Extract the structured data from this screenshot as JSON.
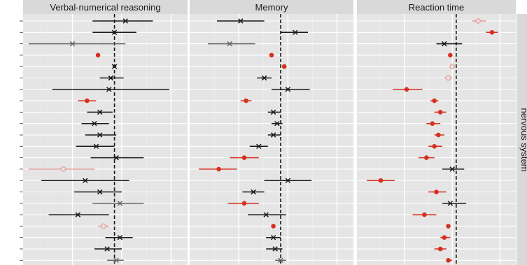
{
  "strip_label": "nervous system",
  "colors": {
    "strip_bg": "#d9d9d9",
    "panel_bg": "#e5e5e5",
    "grid_major": "#ffffff",
    "grid_minor": "#ededed",
    "ref_line": "#1a1a1a",
    "black": "#1a1a1a",
    "grey": "#666666",
    "red": "#d7301f",
    "pink": "#e8a09a"
  },
  "chart_data": {
    "type": "forest",
    "x_axis": "no visible tick labels",
    "legend": "none",
    "grid": true,
    "n_rows": 22,
    "marker_key": {
      "x": "cross",
      "d": "filled dot",
      "o": "open circle"
    },
    "color_key": {
      "k": "black",
      "g": "grey",
      "r": "red",
      "p": "pink"
    },
    "panels": [
      {
        "title": "Verbal-numerical reasoning",
        "reference_value": 0.0,
        "xlim": [
          -0.5,
          0.4
        ],
        "rows": [
          {
            "est": 0.06,
            "lo": -0.12,
            "hi": 0.21,
            "marker": "x",
            "color": "k"
          },
          {
            "est": 0.0,
            "lo": -0.12,
            "hi": 0.12,
            "marker": "x",
            "color": "k"
          },
          {
            "est": -0.23,
            "lo": -0.47,
            "hi": 0.06,
            "marker": "x",
            "color": "g"
          },
          {
            "est": -0.09,
            "lo": -0.1,
            "hi": -0.08,
            "marker": "d",
            "color": "r"
          },
          {
            "est": 0.0,
            "lo": -0.01,
            "hi": 0.01,
            "marker": "x",
            "color": "k"
          },
          {
            "est": -0.02,
            "lo": -0.08,
            "hi": 0.05,
            "marker": "x",
            "color": "k"
          },
          {
            "est": -0.03,
            "lo": -0.34,
            "hi": 0.3,
            "marker": "x",
            "color": "k"
          },
          {
            "est": -0.15,
            "lo": -0.2,
            "hi": -0.1,
            "marker": "d",
            "color": "r"
          },
          {
            "est": -0.08,
            "lo": -0.15,
            "hi": -0.01,
            "marker": "x",
            "color": "k"
          },
          {
            "est": -0.11,
            "lo": -0.18,
            "hi": -0.03,
            "marker": "x",
            "color": "k"
          },
          {
            "est": -0.08,
            "lo": -0.16,
            "hi": 0.01,
            "marker": "x",
            "color": "k"
          },
          {
            "est": -0.1,
            "lo": -0.21,
            "hi": 0.0,
            "marker": "x",
            "color": "k"
          },
          {
            "est": 0.01,
            "lo": -0.13,
            "hi": 0.16,
            "marker": "x",
            "color": "k"
          },
          {
            "est": -0.28,
            "lo": -0.47,
            "hi": -0.11,
            "marker": "o",
            "color": "p"
          },
          {
            "est": -0.16,
            "lo": -0.4,
            "hi": 0.08,
            "marker": "x",
            "color": "k"
          },
          {
            "est": -0.08,
            "lo": -0.22,
            "hi": 0.04,
            "marker": "x",
            "color": "k"
          },
          {
            "est": 0.03,
            "lo": -0.12,
            "hi": 0.16,
            "marker": "x",
            "color": "g"
          },
          {
            "est": -0.2,
            "lo": -0.36,
            "hi": -0.03,
            "marker": "x",
            "color": "k"
          },
          {
            "est": -0.06,
            "lo": -0.09,
            "hi": -0.03,
            "marker": "o",
            "color": "p"
          },
          {
            "est": 0.03,
            "lo": -0.05,
            "hi": 0.1,
            "marker": "x",
            "color": "k"
          },
          {
            "est": -0.04,
            "lo": -0.11,
            "hi": 0.04,
            "marker": "x",
            "color": "k"
          },
          {
            "est": 0.01,
            "lo": -0.04,
            "hi": 0.05,
            "marker": "x",
            "color": "g"
          }
        ]
      },
      {
        "title": "Memory",
        "reference_value": 0.0,
        "xlim": [
          -0.5,
          0.4
        ],
        "rows": [
          {
            "est": -0.22,
            "lo": -0.35,
            "hi": -0.09,
            "marker": "x",
            "color": "k"
          },
          {
            "est": 0.08,
            "lo": 0.0,
            "hi": 0.15,
            "marker": "x",
            "color": "k"
          },
          {
            "est": -0.28,
            "lo": -0.4,
            "hi": -0.14,
            "marker": "x",
            "color": "g"
          },
          {
            "est": -0.05,
            "lo": -0.06,
            "hi": -0.04,
            "marker": "d",
            "color": "r"
          },
          {
            "est": 0.02,
            "lo": 0.01,
            "hi": 0.03,
            "marker": "d",
            "color": "r"
          },
          {
            "est": -0.09,
            "lo": -0.13,
            "hi": -0.05,
            "marker": "x",
            "color": "k"
          },
          {
            "est": 0.04,
            "lo": -0.05,
            "hi": 0.16,
            "marker": "x",
            "color": "k"
          },
          {
            "est": -0.19,
            "lo": -0.22,
            "hi": -0.16,
            "marker": "d",
            "color": "r"
          },
          {
            "est": -0.04,
            "lo": -0.07,
            "hi": 0.0,
            "marker": "x",
            "color": "k"
          },
          {
            "est": -0.02,
            "lo": -0.05,
            "hi": 0.01,
            "marker": "x",
            "color": "k"
          },
          {
            "est": -0.04,
            "lo": -0.07,
            "hi": 0.0,
            "marker": "x",
            "color": "k"
          },
          {
            "est": -0.12,
            "lo": -0.17,
            "hi": -0.07,
            "marker": "x",
            "color": "k"
          },
          {
            "est": -0.2,
            "lo": -0.28,
            "hi": -0.12,
            "marker": "d",
            "color": "r"
          },
          {
            "est": -0.34,
            "lo": -0.45,
            "hi": -0.24,
            "marker": "d",
            "color": "r"
          },
          {
            "est": 0.04,
            "lo": -0.09,
            "hi": 0.17,
            "marker": "x",
            "color": "k"
          },
          {
            "est": -0.15,
            "lo": -0.21,
            "hi": -0.09,
            "marker": "x",
            "color": "k"
          },
          {
            "est": -0.2,
            "lo": -0.29,
            "hi": -0.12,
            "marker": "d",
            "color": "r"
          },
          {
            "est": -0.08,
            "lo": -0.18,
            "hi": 0.03,
            "marker": "x",
            "color": "k"
          },
          {
            "est": -0.04,
            "lo": -0.05,
            "hi": -0.03,
            "marker": "d",
            "color": "r"
          },
          {
            "est": -0.04,
            "lo": -0.08,
            "hi": 0.0,
            "marker": "x",
            "color": "k"
          },
          {
            "est": -0.03,
            "lo": -0.08,
            "hi": 0.01,
            "marker": "x",
            "color": "k"
          },
          {
            "est": 0.0,
            "lo": -0.03,
            "hi": 0.03,
            "marker": "x",
            "color": "g"
          }
        ]
      },
      {
        "title": "Reaction time",
        "reference_value": 0.0,
        "xlim": [
          -0.5,
          0.3
        ],
        "rows": [
          {
            "est": 0.11,
            "lo": 0.08,
            "hi": 0.15,
            "marker": "o",
            "color": "p"
          },
          {
            "est": 0.18,
            "lo": 0.15,
            "hi": 0.21,
            "marker": "d",
            "color": "r"
          },
          {
            "est": -0.06,
            "lo": -0.1,
            "hi": 0.03,
            "marker": "x",
            "color": "k"
          },
          {
            "est": -0.03,
            "lo": -0.04,
            "hi": -0.02,
            "marker": "d",
            "color": "r"
          },
          {
            "est": -0.02,
            "lo": -0.03,
            "hi": -0.01,
            "marker": "o",
            "color": "p"
          },
          {
            "est": -0.04,
            "lo": -0.06,
            "hi": -0.02,
            "marker": "o",
            "color": "p"
          },
          {
            "est": -0.25,
            "lo": -0.32,
            "hi": -0.17,
            "marker": "d",
            "color": "r"
          },
          {
            "est": -0.11,
            "lo": -0.13,
            "hi": -0.09,
            "marker": "d",
            "color": "r"
          },
          {
            "est": -0.08,
            "lo": -0.11,
            "hi": -0.05,
            "marker": "d",
            "color": "r"
          },
          {
            "est": -0.12,
            "lo": -0.15,
            "hi": -0.08,
            "marker": "d",
            "color": "r"
          },
          {
            "est": -0.09,
            "lo": -0.11,
            "hi": -0.06,
            "marker": "d",
            "color": "r"
          },
          {
            "est": -0.11,
            "lo": -0.14,
            "hi": -0.07,
            "marker": "d",
            "color": "r"
          },
          {
            "est": -0.15,
            "lo": -0.19,
            "hi": -0.11,
            "marker": "d",
            "color": "r"
          },
          {
            "est": -0.02,
            "lo": -0.07,
            "hi": 0.04,
            "marker": "x",
            "color": "k"
          },
          {
            "est": -0.38,
            "lo": -0.45,
            "hi": -0.31,
            "marker": "d",
            "color": "r"
          },
          {
            "est": -0.1,
            "lo": -0.14,
            "hi": -0.05,
            "marker": "d",
            "color": "r"
          },
          {
            "est": -0.03,
            "lo": -0.07,
            "hi": 0.05,
            "marker": "x",
            "color": "k"
          },
          {
            "est": -0.16,
            "lo": -0.22,
            "hi": -0.1,
            "marker": "d",
            "color": "r"
          },
          {
            "est": -0.04,
            "lo": -0.05,
            "hi": -0.03,
            "marker": "d",
            "color": "r"
          },
          {
            "est": -0.06,
            "lo": -0.08,
            "hi": -0.03,
            "marker": "d",
            "color": "r"
          },
          {
            "est": -0.08,
            "lo": -0.11,
            "hi": -0.05,
            "marker": "d",
            "color": "r"
          },
          {
            "est": -0.04,
            "lo": -0.05,
            "hi": -0.02,
            "marker": "d",
            "color": "r"
          }
        ]
      }
    ]
  }
}
